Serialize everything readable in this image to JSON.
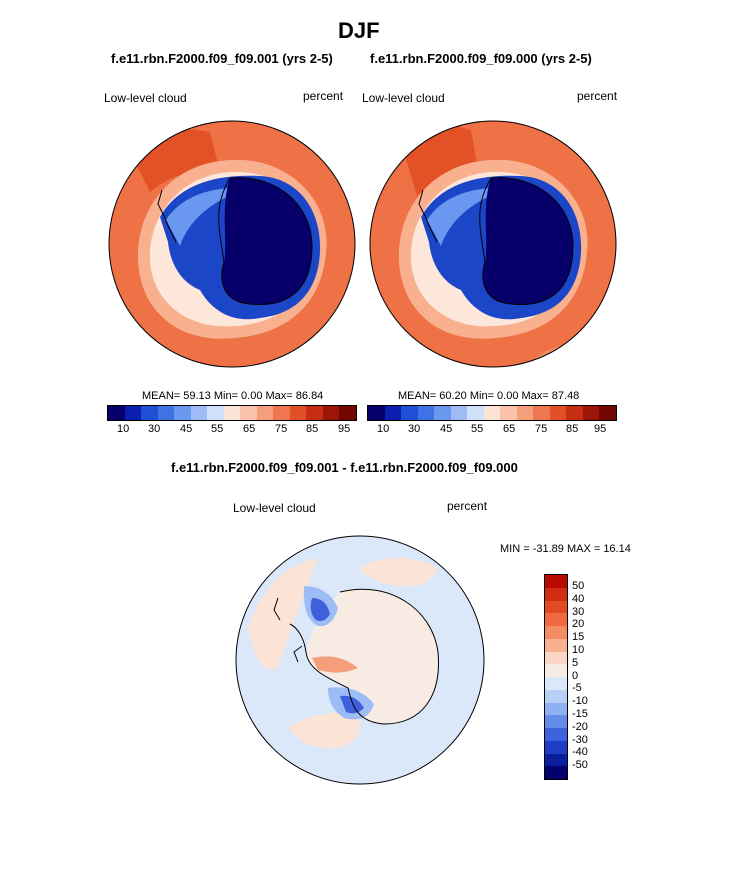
{
  "header": {
    "title": "DJF"
  },
  "panels": [
    {
      "case": "f.e11.rbn.F2000.f09_f09.001 (yrs 2-5)",
      "left_label": "Low-level cloud",
      "right_label": "percent",
      "stats": "MEAN=  59.13  Min=   0.00  Max=  86.84"
    },
    {
      "case": "f.e11.rbn.F2000.f09_f09.000 (yrs 2-5)",
      "left_label": "Low-level cloud",
      "right_label": "percent",
      "stats": "MEAN=  60.20  Min=   0.00  Max=  87.48"
    }
  ],
  "diff": {
    "case": "f.e11.rbn.F2000.f09_f09.001 - f.e11.rbn.F2000.f09_f09.000",
    "left_label": "Low-level cloud",
    "right_label": "percent",
    "minmax": "MIN = -31.89 MAX =  16.14"
  },
  "colorbar_main": {
    "colors": [
      "#08006a",
      "#0a1fb0",
      "#1f4fd6",
      "#3f72e4",
      "#6a97ef",
      "#9dbcf5",
      "#cfe0fa",
      "#fbe3d6",
      "#f9c3aa",
      "#f59e7c",
      "#ee7650",
      "#e25028",
      "#c52e12",
      "#9b1606",
      "#730600"
    ],
    "labels": [
      "10",
      "30",
      "45",
      "55",
      "65",
      "75",
      "85",
      "95"
    ]
  },
  "colorbar_diff": {
    "colors": [
      "#b80a00",
      "#d02e12",
      "#e24a22",
      "#ef6a40",
      "#f48c64",
      "#f7b090",
      "#fbd6c4",
      "#f7ebe3",
      "#dbe8fa",
      "#b8d0f7",
      "#8eb2f1",
      "#648ce8",
      "#3c62dc",
      "#1e3cc6",
      "#0a1e9c",
      "#04006e"
    ],
    "labels": [
      "50",
      "40",
      "30",
      "20",
      "15",
      "10",
      "5",
      "0",
      "-5",
      "-10",
      "-15",
      "-20",
      "-30",
      "-40",
      "-50"
    ]
  },
  "maps": {
    "left": {
      "ocean": "#ee7246",
      "ring": "#f8b08e",
      "rim": "#fde6da",
      "ice": "#1c46c8",
      "core": "#08006a"
    },
    "right": {
      "ocean": "#ee7246",
      "ring": "#f8b08e",
      "rim": "#fde6da",
      "ice": "#1c46c8",
      "core": "#08006a"
    },
    "diff": {
      "ocean": "#dbe8fa",
      "warm": "#fbe3d6",
      "cool": "#9dbcf5",
      "strong": "#3f60d8"
    }
  }
}
